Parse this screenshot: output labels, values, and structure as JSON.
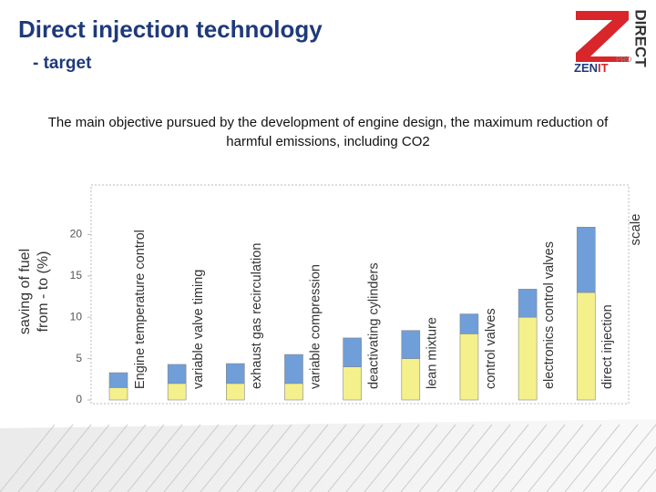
{
  "header": {
    "title": "Direct injection technology",
    "subtitle": "- target",
    "description": "The main objective pursued by the development of engine design, the maximum reduction of harmful emissions, including CO2"
  },
  "logo": {
    "word": "DIRECT",
    "brand": "ZEN",
    "brand_accent": "IT",
    "tag": "PRO"
  },
  "chart_data": {
    "type": "stacked_bar",
    "ylabel": [
      "saving of fuel",
      "from - to (%)"
    ],
    "y2label": "scale",
    "categories": [
      "Engine temperature control",
      "variable valve timing",
      "exhaust gas recirculation",
      "variable compression",
      "deactivating cylinders",
      "lean mixture",
      "control valves",
      "electronics control valves",
      "direct injection"
    ],
    "series": [
      {
        "color": "#f4f08c",
        "values": [
          1.5,
          2,
          2,
          2,
          4,
          5,
          8,
          10,
          13
        ]
      },
      {
        "color": "#6f9ed8",
        "values": [
          1.8,
          2.3,
          2.4,
          3.5,
          3.5,
          3.4,
          2.4,
          3.4,
          7.9
        ]
      }
    ],
    "ylim": [
      0,
      26
    ],
    "yticks": [
      0,
      5,
      10,
      15,
      20
    ],
    "grid": false
  }
}
